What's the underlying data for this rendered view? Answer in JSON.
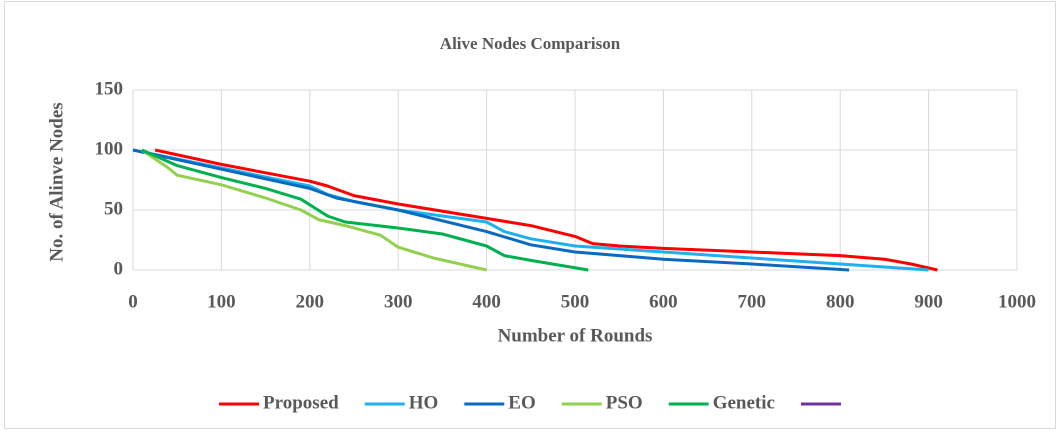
{
  "chart_data": {
    "type": "line",
    "title": "Alive Nodes Comparison",
    "x_label": "Number of Rounds",
    "y_label": "No. of Alinve Nodes",
    "xlim": [
      0,
      1000
    ],
    "xticks": [
      0,
      100,
      200,
      300,
      400,
      500,
      600,
      700,
      800,
      900,
      1000
    ],
    "ylim": [
      0,
      150
    ],
    "yticks": [
      0,
      50,
      100,
      150
    ],
    "grid": true,
    "legend": "bottom",
    "series": [
      {
        "name": "Proposed",
        "color": "#ff0000",
        "x": [
          25,
          100,
          200,
          220,
          250,
          300,
          400,
          450,
          500,
          520,
          550,
          600,
          700,
          800,
          850,
          880,
          910
        ],
        "values": [
          100,
          88,
          74,
          70,
          62,
          55,
          43,
          37,
          28,
          22,
          20,
          18,
          15,
          12,
          9,
          5,
          0
        ]
      },
      {
        "name": "HO",
        "color": "#1fb0f0",
        "x": [
          0,
          100,
          200,
          220,
          250,
          300,
          400,
          420,
          450,
          500,
          600,
          700,
          800,
          900
        ],
        "values": [
          100,
          85,
          70,
          63,
          57,
          50,
          40,
          32,
          26,
          20,
          15,
          10,
          5,
          0
        ]
      },
      {
        "name": "EO",
        "color": "#0a6abf",
        "x": [
          0,
          100,
          200,
          230,
          300,
          400,
          450,
          500,
          600,
          700,
          810
        ],
        "values": [
          100,
          84,
          68,
          60,
          50,
          32,
          21,
          15,
          9,
          5,
          0
        ]
      },
      {
        "name": "PSO",
        "color": "#92d050",
        "x": [
          10,
          40,
          50,
          100,
          150,
          190,
          210,
          240,
          280,
          300,
          340,
          370,
          400
        ],
        "values": [
          100,
          85,
          79,
          71,
          60,
          50,
          42,
          37,
          29,
          19,
          10,
          5,
          0
        ]
      },
      {
        "name": "Genetic",
        "color": "#00b050",
        "x": [
          10,
          50,
          100,
          150,
          190,
          220,
          240,
          300,
          350,
          400,
          420,
          450,
          515
        ],
        "values": [
          100,
          87,
          77,
          68,
          59,
          45,
          40,
          35,
          30,
          20,
          12,
          8,
          0
        ]
      },
      {
        "name": null,
        "color": "#7030a0",
        "x": [],
        "values": []
      }
    ]
  }
}
